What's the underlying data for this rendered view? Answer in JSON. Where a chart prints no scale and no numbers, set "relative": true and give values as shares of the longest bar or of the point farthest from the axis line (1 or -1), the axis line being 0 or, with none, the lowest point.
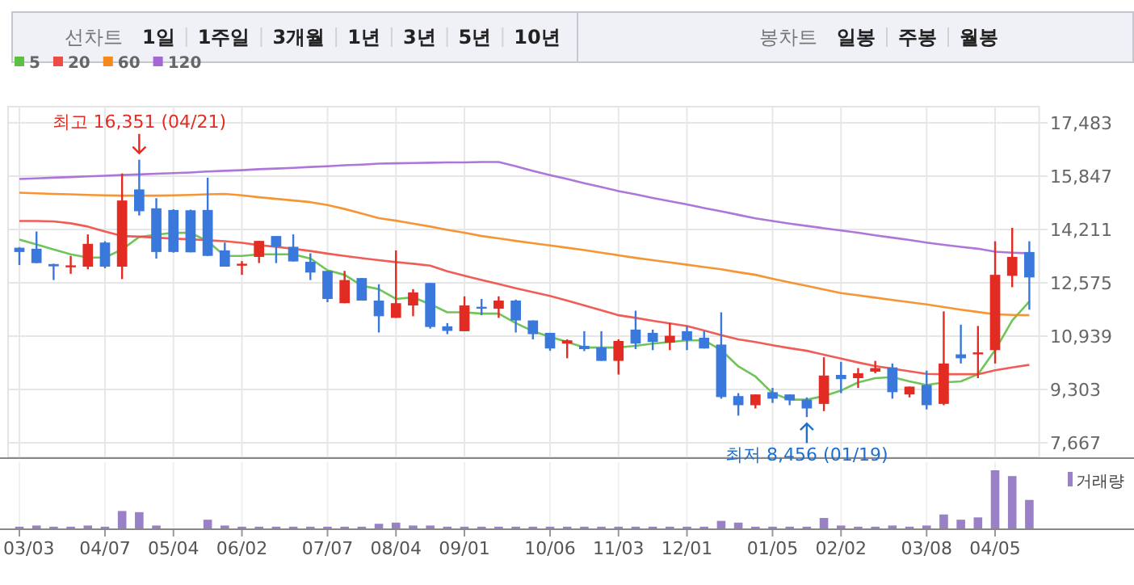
{
  "chart_data": [
    {
      "type": "other",
      "annotations": [
        "선차트",
        "1일",
        "1주일",
        "3개월",
        "1년",
        "3년",
        "5년",
        "10년",
        "봉차트",
        "일봉",
        "주봉",
        "월봉"
      ]
    },
    {
      "type": "candlestick",
      "categories": [
        "03/03",
        null,
        null,
        null,
        null,
        "04/07",
        null,
        null,
        null,
        "05/04",
        null,
        null,
        null,
        "06/02",
        null,
        null,
        null,
        null,
        "07/07",
        null,
        null,
        null,
        "08/04",
        null,
        null,
        null,
        "09/01",
        null,
        null,
        null,
        null,
        "10/06",
        null,
        null,
        null,
        "11/03",
        null,
        null,
        null,
        "12/01",
        null,
        null,
        null,
        null,
        "01/05",
        null,
        null,
        null,
        "02/02",
        null,
        null,
        null,
        null,
        "03/08",
        null,
        null,
        null,
        "04/05",
        null,
        null
      ],
      "ohlc": [
        [
          13650,
          13670,
          13120,
          13520
        ],
        [
          13620,
          14150,
          13180,
          13180
        ],
        [
          13150,
          13160,
          12660,
          13080
        ],
        [
          13100,
          13400,
          12850,
          13110
        ],
        [
          13070,
          14060,
          12990,
          13770
        ],
        [
          13810,
          13850,
          13020,
          13070
        ],
        [
          13070,
          15930,
          12690,
          15100
        ],
        [
          15440,
          16351,
          14640,
          14770
        ],
        [
          14860,
          15170,
          13320,
          13520
        ],
        [
          14810,
          14830,
          13500,
          13520
        ],
        [
          14800,
          14820,
          13510,
          13510
        ],
        [
          14810,
          15800,
          13400,
          13400
        ],
        [
          13570,
          13810,
          13070,
          13070
        ],
        [
          13130,
          13240,
          12820,
          13160
        ],
        [
          13370,
          13860,
          13180,
          13860
        ],
        [
          14010,
          14010,
          13180,
          13680
        ],
        [
          13680,
          14060,
          13230,
          13230
        ],
        [
          13220,
          13480,
          12660,
          12890
        ],
        [
          12940,
          12940,
          11980,
          12080
        ],
        [
          11950,
          12940,
          11950,
          12660
        ],
        [
          12720,
          12720,
          12030,
          12030
        ],
        [
          12030,
          12530,
          11050,
          11550
        ],
        [
          11500,
          13570,
          11500,
          11950
        ],
        [
          11880,
          12380,
          11550,
          12280
        ],
        [
          12570,
          12570,
          11170,
          11220
        ],
        [
          11240,
          11340,
          11000,
          11100
        ],
        [
          11090,
          12160,
          11090,
          11880
        ],
        [
          11840,
          12080,
          11580,
          11820
        ],
        [
          11780,
          12160,
          11500,
          12030
        ],
        [
          12030,
          12060,
          11050,
          11420
        ],
        [
          11420,
          11420,
          10840,
          11000
        ],
        [
          11040,
          11040,
          10490,
          10560
        ],
        [
          10710,
          10840,
          10260,
          10810
        ],
        [
          10640,
          11090,
          10480,
          10540
        ],
        [
          10590,
          11090,
          10180,
          10180
        ],
        [
          10180,
          10840,
          9760,
          10790
        ],
        [
          11140,
          11720,
          10540,
          10710
        ],
        [
          11040,
          11140,
          10510,
          10760
        ],
        [
          10740,
          11340,
          10510,
          10950
        ],
        [
          11090,
          11250,
          10510,
          10810
        ],
        [
          10890,
          11090,
          10560,
          10560
        ],
        [
          10680,
          11670,
          9020,
          9070
        ],
        [
          9100,
          9190,
          8500,
          8820
        ],
        [
          8820,
          9150,
          8720,
          9150
        ],
        [
          9220,
          9350,
          8890,
          9020
        ],
        [
          9150,
          9150,
          8820,
          8970
        ],
        [
          8990,
          9060,
          8456,
          8720
        ],
        [
          8860,
          10290,
          8640,
          9730
        ],
        [
          9750,
          10150,
          9190,
          9620
        ],
        [
          9650,
          9960,
          9350,
          9800
        ],
        [
          9850,
          10180,
          9800,
          9960
        ],
        [
          9980,
          10100,
          9020,
          9220
        ],
        [
          9150,
          9390,
          9060,
          9390
        ],
        [
          9440,
          9880,
          8690,
          8820
        ],
        [
          8860,
          11700,
          8820,
          10100
        ],
        [
          10380,
          11290,
          10100,
          10260
        ],
        [
          10380,
          11250,
          9650,
          10440
        ],
        [
          10510,
          13850,
          10100,
          12820
        ],
        [
          12790,
          14260,
          12440,
          13370
        ],
        [
          13520,
          13850,
          11750,
          12740
        ]
      ],
      "series": [
        {
          "name": "5",
          "type": "line",
          "color": "#5fbf45",
          "values": [
            13900,
            13750,
            13600,
            13450,
            13350,
            13350,
            13600,
            13980,
            14050,
            14110,
            14110,
            13850,
            13400,
            13400,
            13450,
            13450,
            13450,
            13320,
            12960,
            12820,
            12490,
            12380,
            12080,
            12130,
            11920,
            11670,
            11670,
            11630,
            11630,
            11340,
            11090,
            10920,
            10760,
            10590,
            10590,
            10590,
            10640,
            10710,
            10760,
            10810,
            10810,
            10510,
            10010,
            9700,
            9190,
            8990,
            8990,
            9100,
            9270,
            9520,
            9650,
            9680,
            9550,
            9440,
            9520,
            9550,
            9770,
            10510,
            11420,
            12000
          ]
        },
        {
          "name": "20",
          "type": "line",
          "color": "#ee4b45",
          "values": [
            14470,
            14470,
            14460,
            14400,
            14300,
            14150,
            14010,
            13990,
            13960,
            13930,
            13910,
            13880,
            13850,
            13800,
            13730,
            13680,
            13620,
            13550,
            13470,
            13400,
            13330,
            13270,
            13210,
            13160,
            13100,
            12930,
            12790,
            12660,
            12540,
            12410,
            12290,
            12170,
            12030,
            11880,
            11730,
            11580,
            11500,
            11410,
            11330,
            11250,
            11110,
            10970,
            10840,
            10760,
            10660,
            10570,
            10490,
            10370,
            10250,
            10130,
            10020,
            9940,
            9860,
            9780,
            9770,
            9770,
            9770,
            9890,
            9980,
            10060
          ]
        },
        {
          "name": "60",
          "type": "line",
          "color": "#f5891e",
          "values": [
            15340,
            15320,
            15300,
            15290,
            15270,
            15260,
            15250,
            15250,
            15250,
            15260,
            15270,
            15290,
            15300,
            15260,
            15200,
            15150,
            15100,
            15050,
            14960,
            14840,
            14700,
            14560,
            14480,
            14390,
            14300,
            14200,
            14110,
            14010,
            13940,
            13860,
            13790,
            13720,
            13650,
            13580,
            13500,
            13420,
            13340,
            13270,
            13200,
            13130,
            13060,
            12990,
            12900,
            12820,
            12700,
            12590,
            12480,
            12370,
            12260,
            12190,
            12120,
            12050,
            11980,
            11910,
            11830,
            11750,
            11680,
            11610,
            11590,
            11580
          ]
        },
        {
          "name": "120",
          "type": "line",
          "color": "#a467d4",
          "values": [
            15760,
            15780,
            15800,
            15820,
            15840,
            15860,
            15880,
            15900,
            15920,
            15940,
            15960,
            15990,
            16010,
            16030,
            16060,
            16080,
            16100,
            16130,
            16150,
            16180,
            16200,
            16230,
            16240,
            16250,
            16260,
            16270,
            16270,
            16280,
            16280,
            16150,
            16010,
            15880,
            15760,
            15630,
            15510,
            15390,
            15290,
            15180,
            15080,
            14980,
            14870,
            14770,
            14660,
            14550,
            14470,
            14390,
            14320,
            14250,
            14180,
            14110,
            14030,
            13960,
            13890,
            13810,
            13740,
            13680,
            13620,
            13530,
            13500,
            13480
          ]
        }
      ],
      "ylim": [
        7667,
        17483
      ],
      "yticks": [
        {
          "value": 7667,
          "label": "7,667"
        },
        {
          "value": 9303,
          "label": "9,303"
        },
        {
          "value": 10939,
          "label": "10,939"
        },
        {
          "value": 12575,
          "label": "12,575"
        },
        {
          "value": 14211,
          "label": "14,211"
        },
        {
          "value": 15847,
          "label": "15,847"
        },
        {
          "value": 17483,
          "label": "17,483"
        }
      ],
      "grid": true,
      "legend": "top left",
      "annotations": [
        {
          "text": "최고 16,351 (04/21)",
          "y": 16351
        },
        {
          "text": "최저 8,456 (01/19)",
          "y": 8456
        }
      ]
    },
    {
      "type": "bar",
      "relative": true,
      "categories": [
        null,
        null,
        null,
        null,
        null,
        null,
        null,
        null,
        null,
        null,
        null,
        null,
        null,
        null,
        null,
        null,
        null,
        null,
        null,
        null,
        null,
        null,
        null,
        null,
        null,
        null,
        null,
        null,
        null,
        null,
        null,
        null,
        null,
        null,
        null,
        null,
        null,
        null,
        null,
        null,
        null,
        null,
        null,
        null,
        null,
        null,
        null,
        null,
        null,
        null,
        null,
        null,
        null,
        null,
        null,
        null,
        null,
        null,
        null,
        null
      ],
      "series": [
        {
          "name": "거래량",
          "color": "#9a80c6",
          "values": [
            0.03,
            0.05,
            0.03,
            0.03,
            0.05,
            0.03,
            0.3,
            0.28,
            0.05,
            0,
            0,
            0.15,
            0.05,
            0.03,
            0.03,
            0.03,
            0.03,
            0.03,
            0.03,
            0.03,
            0.03,
            0.08,
            0.1,
            0.05,
            0.05,
            0.03,
            0.03,
            0.03,
            0.03,
            0.03,
            0.03,
            0.03,
            0.03,
            0.03,
            0.03,
            0.03,
            0.03,
            0.03,
            0.03,
            0.03,
            0.03,
            0.13,
            0.1,
            0.03,
            0.03,
            0.03,
            0.03,
            0.18,
            0.05,
            0.03,
            0.03,
            0.05,
            0.03,
            0.05,
            0.24,
            0.15,
            0.19,
            1,
            0.9,
            0.49
          ]
        }
      ],
      "legend": "top right"
    }
  ]
}
